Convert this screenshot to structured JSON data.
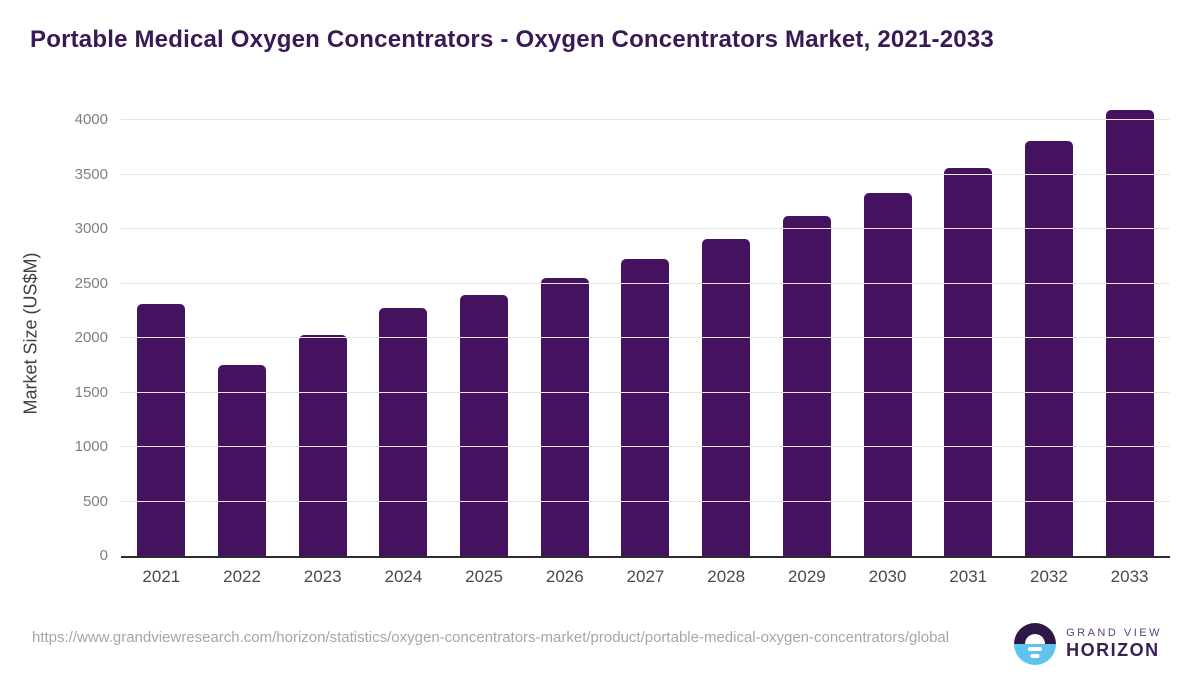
{
  "title": "Portable Medical Oxygen Concentrators - Oxygen Concentrators Market, 2021-2033",
  "chart_data": {
    "type": "bar",
    "title": "Portable Medical Oxygen Concentrators - Oxygen Concentrators Market, 2021-2033",
    "categories": [
      "2021",
      "2022",
      "2023",
      "2024",
      "2025",
      "2026",
      "2027",
      "2028",
      "2029",
      "2030",
      "2031",
      "2032",
      "2033"
    ],
    "values": [
      2310,
      1750,
      2025,
      2275,
      2395,
      2555,
      2725,
      2910,
      3115,
      3330,
      3560,
      3810,
      4090
    ],
    "xlabel": "",
    "ylabel": "Market Size (US$M)",
    "ylim": [
      0,
      4000
    ],
    "yticks": [
      0,
      500,
      1000,
      1500,
      2000,
      2500,
      3000,
      3500,
      4000
    ],
    "grid": true,
    "legend": "none",
    "bar_color": "#45125f"
  },
  "footer": {
    "source_url": "https://www.grandviewresearch.com/horizon/statistics/oxygen-concentrators-market/product/portable-medical-oxygen-concentrators/global",
    "logo": {
      "line1": "GRAND VIEW",
      "line2": "HORIZON"
    }
  },
  "colors": {
    "title": "#3a1a54",
    "bar": "#45125f",
    "gridline": "#e7e7e7",
    "axis_line": "#2b2b2b",
    "tick_label": "#7f7f7f",
    "x_label": "#4a4a4a",
    "url_text": "#a6a6a6",
    "logo_dark": "#2e1745",
    "logo_blue": "#5fc3ee"
  }
}
